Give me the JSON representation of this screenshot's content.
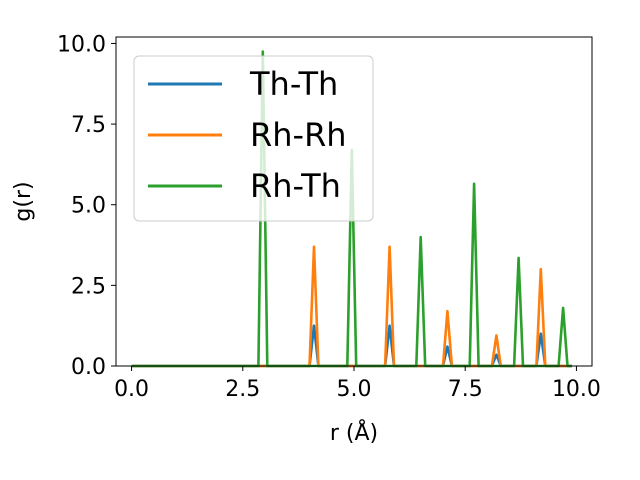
{
  "chart_data": {
    "type": "line",
    "title": "",
    "xlabel": "r (Å)",
    "ylabel": "g(r)",
    "xlim": [
      -0.35,
      10.35
    ],
    "ylim": [
      0,
      10.2
    ],
    "xticks": [
      0.0,
      2.5,
      5.0,
      7.5,
      10.0
    ],
    "xtick_labels": [
      "0.0",
      "2.5",
      "5.0",
      "7.5",
      "10.0"
    ],
    "yticks": [
      0.0,
      2.5,
      5.0,
      7.5,
      10.0
    ],
    "ytick_labels": [
      "0.0",
      "2.5",
      "5.0",
      "7.5",
      "10.0"
    ],
    "grid": false,
    "legend_position": "top-left",
    "x_range": [
      0.0,
      9.9
    ],
    "peak_halfwidth": 0.1,
    "series": [
      {
        "name": "Th-Th",
        "color": "#1f77b4",
        "peaks": [
          {
            "x": 4.1,
            "y": 1.25
          },
          {
            "x": 5.8,
            "y": 1.25
          },
          {
            "x": 7.1,
            "y": 0.6
          },
          {
            "x": 8.2,
            "y": 0.35
          },
          {
            "x": 9.2,
            "y": 1.0
          }
        ]
      },
      {
        "name": "Rh-Rh",
        "color": "#ff7f0e",
        "peaks": [
          {
            "x": 4.1,
            "y": 3.7
          },
          {
            "x": 5.8,
            "y": 3.7
          },
          {
            "x": 7.1,
            "y": 1.7
          },
          {
            "x": 8.2,
            "y": 0.95
          },
          {
            "x": 9.2,
            "y": 3.0
          }
        ]
      },
      {
        "name": "Rh-Th",
        "color": "#2ca02c",
        "peaks": [
          {
            "x": 2.95,
            "y": 9.75
          },
          {
            "x": 4.95,
            "y": 6.7
          },
          {
            "x": 6.5,
            "y": 4.0
          },
          {
            "x": 7.7,
            "y": 5.65
          },
          {
            "x": 8.7,
            "y": 3.35
          },
          {
            "x": 9.7,
            "y": 1.8
          }
        ]
      }
    ]
  }
}
